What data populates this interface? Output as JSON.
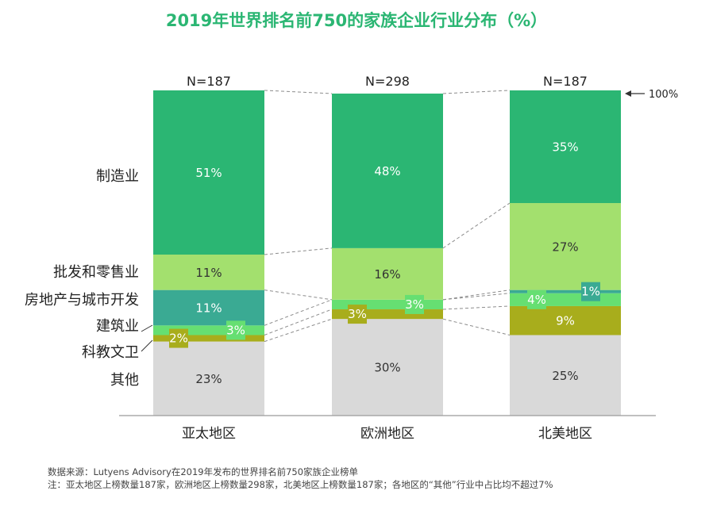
{
  "chart_data": {
    "type": "stacked-bar-100",
    "title": "2019年世界排名前750的家族企业行业分布（%）",
    "reference_label": "100%",
    "categories": [
      "亚太地区",
      "欧洲地区",
      "北美地区"
    ],
    "n_labels": [
      "N=187",
      "N=298",
      "N=187"
    ],
    "series": [
      {
        "name": "其他",
        "color": "#d9d9d9",
        "values": [
          23,
          30,
          25
        ],
        "labels": [
          "23%",
          "30%",
          "25%"
        ]
      },
      {
        "name": "科教文卫",
        "color": "#a8ad1c",
        "values": [
          2,
          3,
          9
        ],
        "labels": [
          "2%",
          "3%",
          "9%"
        ]
      },
      {
        "name": "建筑业",
        "color": "#66df72",
        "values": [
          3,
          3,
          4
        ],
        "labels": [
          "3%",
          "3%",
          "4%"
        ]
      },
      {
        "name": "房地产与城市开发",
        "color": "#3aaa93",
        "values": [
          11,
          0,
          1
        ],
        "labels": [
          "11%",
          "",
          "1%"
        ]
      },
      {
        "name": "批发和零售业",
        "color": "#a3e06e",
        "values": [
          11,
          16,
          27
        ],
        "labels": [
          "11%",
          "16%",
          "27%"
        ]
      },
      {
        "name": "制造业",
        "color": "#2bb673",
        "values": [
          51,
          48,
          35
        ],
        "labels": [
          "51%",
          "48%",
          "35%"
        ]
      }
    ],
    "ylim": [
      0,
      100
    ],
    "xlabel": "",
    "ylabel": ""
  },
  "notes": {
    "source": "数据来源：Lutyens Advisory在2019年发布的世界排名前750家族企业榜单",
    "footnote": "注：亚太地区上榜数量187家，欧洲地区上榜数量298家，北美地区上榜数量187家；各地区的“其他”行业中占比均不超过7%"
  }
}
